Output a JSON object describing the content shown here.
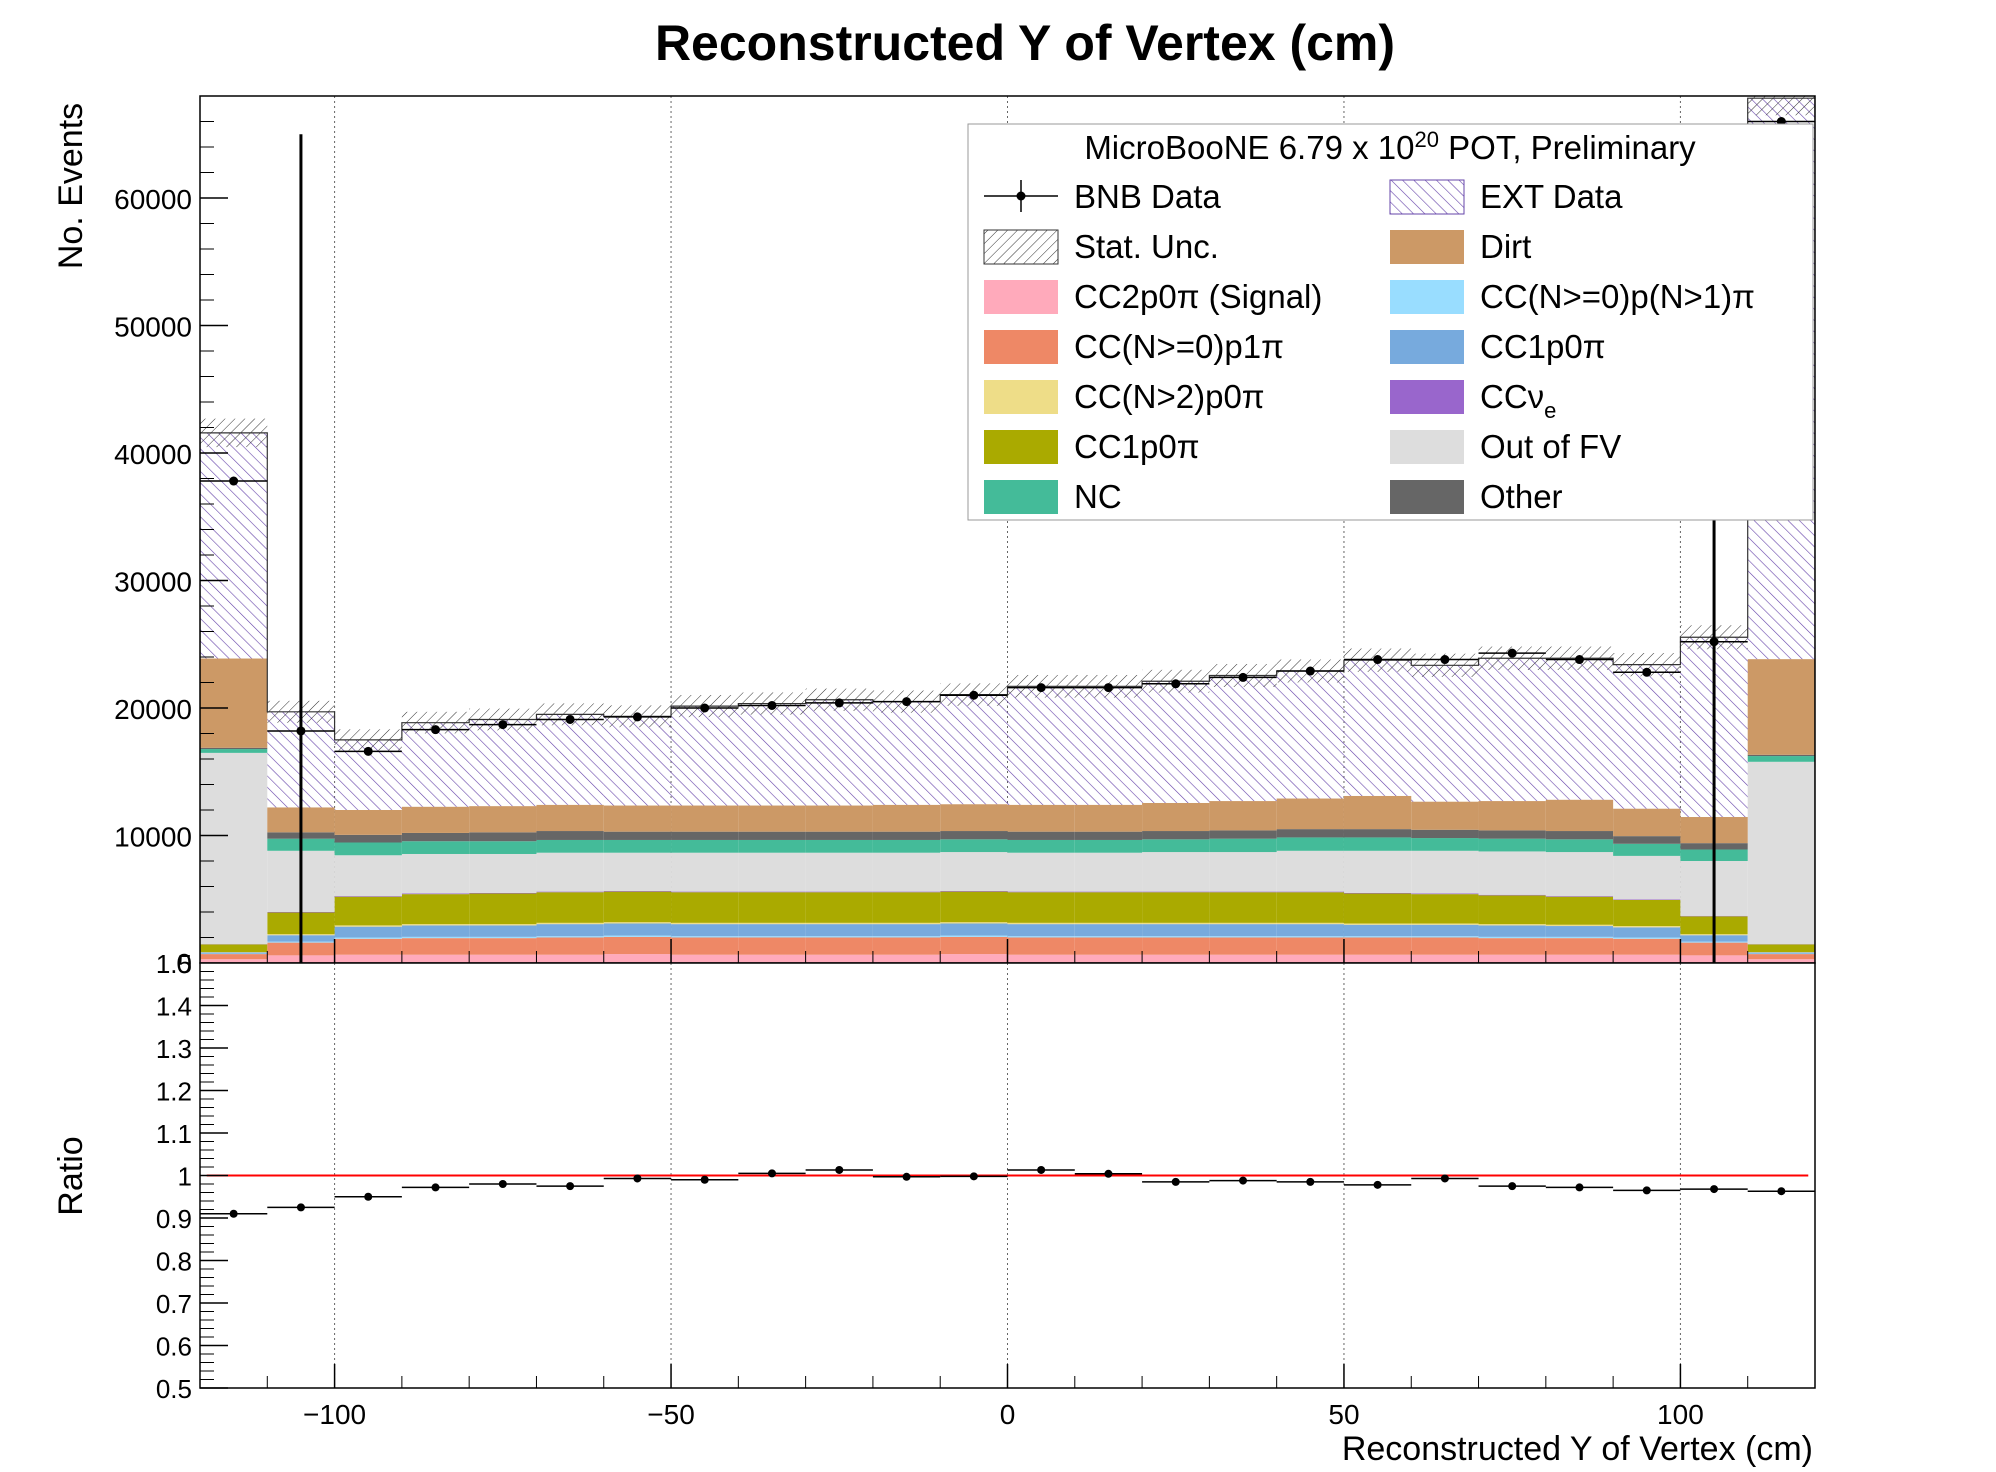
{
  "chart_data": {
    "type": "bar",
    "title": "Reconstructed Y of Vertex (cm)",
    "xlabel": "Reconstructed Y of Vertex (cm)",
    "ylabel": "No. Events",
    "ratio_ylabel": "Ratio",
    "xlim": [
      -120,
      120
    ],
    "ylim": [
      0,
      68000
    ],
    "ratio_ylim": [
      0.5,
      1.5
    ],
    "grid": "vertical",
    "legend_position": "top-right",
    "x_ticks": [
      -100,
      -50,
      0,
      50,
      100
    ],
    "x_tick_labels": [
      "−100",
      "−50",
      "0",
      "50",
      "100"
    ],
    "y_ticks": [
      10000,
      20000,
      30000,
      40000,
      50000,
      60000
    ],
    "y_tick_labels": [
      "10000",
      "20000",
      "30000",
      "40000",
      "50000",
      "60000"
    ],
    "y_cut_label": "0",
    "ratio_ticks": [
      0.5,
      0.6,
      0.7,
      0.8,
      0.9,
      1.0,
      1.1,
      1.2,
      1.3,
      1.4
    ],
    "ratio_tick_labels": [
      "0.5",
      "0.6",
      "0.7",
      "0.8",
      "0.9",
      "1",
      "1.1",
      "1.2",
      "1.3",
      "1.4"
    ],
    "ratio_cut_label": "1.5",
    "legend_header": {
      "main": "MicroBooNE 6.79 x 10",
      "sup": "20",
      "tail": " POT, Preliminary"
    },
    "bin_edges": [
      -120,
      -110,
      -100,
      -90,
      -80,
      -70,
      -60,
      -50,
      -40,
      -30,
      -20,
      -10,
      0,
      10,
      20,
      30,
      40,
      50,
      60,
      70,
      80,
      90,
      100,
      110,
      120
    ],
    "series": [
      {
        "name": "CC2p0π (Signal)",
        "color": "#ffaabb",
        "values": [
          300,
          600,
          650,
          650,
          650,
          650,
          700,
          650,
          650,
          650,
          650,
          700,
          650,
          650,
          650,
          650,
          650,
          650,
          650,
          650,
          650,
          650,
          600,
          300
        ]
      },
      {
        "name": "CC(N>=0)p1π",
        "color": "#ee8866",
        "values": [
          400,
          1000,
          1250,
          1300,
          1300,
          1350,
          1350,
          1350,
          1350,
          1350,
          1350,
          1350,
          1350,
          1350,
          1350,
          1350,
          1350,
          1350,
          1350,
          1300,
          1300,
          1250,
          1000,
          400
        ]
      },
      {
        "name": "CC(N>=0)p(N>1)π",
        "color": "#99ddff",
        "values": [
          30,
          80,
          100,
          100,
          100,
          100,
          100,
          100,
          100,
          100,
          100,
          100,
          100,
          100,
          100,
          100,
          100,
          100,
          100,
          100,
          100,
          100,
          80,
          30
        ]
      },
      {
        "name": "CC1p0π",
        "color": "#77aadd",
        "values": [
          100,
          500,
          850,
          900,
          900,
          950,
          950,
          950,
          950,
          950,
          950,
          950,
          950,
          950,
          950,
          950,
          950,
          900,
          900,
          900,
          850,
          800,
          500,
          100
        ]
      },
      {
        "name": "CC(N>2)p0π",
        "color": "#eedd88",
        "values": [
          30,
          80,
          100,
          100,
          100,
          100,
          100,
          100,
          100,
          100,
          100,
          100,
          100,
          100,
          100,
          100,
          100,
          100,
          100,
          100,
          100,
          100,
          80,
          30
        ]
      },
      {
        "name": "CC1p0π",
        "color": "#aaaa00",
        "values": [
          600,
          1700,
          2250,
          2350,
          2400,
          2400,
          2400,
          2400,
          2400,
          2400,
          2400,
          2400,
          2400,
          2400,
          2400,
          2400,
          2400,
          2350,
          2300,
          2250,
          2200,
          2050,
          1400,
          600
        ]
      },
      {
        "name": "CCν",
        "color": "#9966cc",
        "values": [
          20,
          40,
          50,
          50,
          50,
          50,
          50,
          50,
          50,
          50,
          50,
          50,
          50,
          50,
          50,
          50,
          50,
          50,
          50,
          50,
          50,
          50,
          40,
          20
        ]
      },
      {
        "name": "Out of FV",
        "color": "#dddddd",
        "values": [
          15000,
          4800,
          3200,
          3100,
          3050,
          3050,
          3000,
          3050,
          3050,
          3050,
          3050,
          3050,
          3050,
          3050,
          3100,
          3100,
          3200,
          3300,
          3350,
          3400,
          3450,
          3400,
          4300,
          14300
        ]
      },
      {
        "name": "NC",
        "color": "#44bb99",
        "values": [
          300,
          950,
          1000,
          1000,
          1000,
          1000,
          1000,
          1000,
          1000,
          1000,
          1000,
          1000,
          1000,
          1000,
          1000,
          1050,
          1050,
          1050,
          1000,
          1000,
          1000,
          950,
          900,
          450
        ]
      },
      {
        "name": "Other",
        "color": "#666666",
        "values": [
          100,
          500,
          600,
          650,
          700,
          700,
          650,
          650,
          650,
          650,
          650,
          650,
          650,
          650,
          650,
          650,
          650,
          650,
          650,
          650,
          650,
          600,
          500,
          100
        ]
      },
      {
        "name": "Dirt",
        "color": "#cc9966",
        "values": [
          7000,
          1950,
          1950,
          2050,
          2050,
          2050,
          2050,
          2050,
          2050,
          2050,
          2100,
          2100,
          2100,
          2100,
          2200,
          2300,
          2400,
          2600,
          2200,
          2300,
          2450,
          2150,
          2050,
          7500
        ]
      },
      {
        "name": "EXT Data",
        "color": "#7755bb",
        "values": [
          17700,
          7500,
          5500,
          6600,
          6800,
          7100,
          7000,
          7800,
          8000,
          8300,
          8100,
          8600,
          9300,
          9300,
          9550,
          9850,
          10000,
          10650,
          10700,
          11200,
          11100,
          11300,
          14100,
          44000
        ]
      }
    ],
    "legend_entries": [
      {
        "label": "BNB Data",
        "style": "data"
      },
      {
        "label": "EXT Data",
        "style": "ext"
      },
      {
        "label": "Stat. Unc.",
        "style": "stat"
      },
      {
        "label": "Dirt",
        "style": "fill",
        "color": "#cc9966"
      },
      {
        "label": "CC2p0π (Signal)",
        "style": "fill",
        "color": "#ffaabb"
      },
      {
        "label": "CC(N>=0)p(N>1)π",
        "style": "fill",
        "color": "#99ddff"
      },
      {
        "label": "CC(N>=0)p1π",
        "style": "fill",
        "color": "#ee8866"
      },
      {
        "label": "CC1p0π",
        "style": "fill",
        "color": "#77aadd"
      },
      {
        "label": "CC(N>2)p0π",
        "style": "fill",
        "color": "#eedd88"
      },
      {
        "label": "CCν",
        "sub": "e",
        "style": "fill",
        "color": "#9966cc"
      },
      {
        "label": "CC1p0π",
        "style": "fill",
        "color": "#aaaa00"
      },
      {
        "label": "Out of FV",
        "style": "fill",
        "color": "#dddddd"
      },
      {
        "label": "NC",
        "style": "fill",
        "color": "#44bb99"
      },
      {
        "label": "Other",
        "style": "fill",
        "color": "#666666"
      }
    ],
    "bnb_data": {
      "name": "BNB Data",
      "x": [
        -115,
        -105,
        -95,
        -85,
        -75,
        -65,
        -55,
        -45,
        -35,
        -25,
        -15,
        -5,
        5,
        15,
        25,
        35,
        45,
        55,
        65,
        75,
        85,
        95,
        105,
        115
      ],
      "y": [
        37800,
        18200,
        16600,
        18300,
        18700,
        19100,
        19300,
        20000,
        20200,
        20400,
        20500,
        21000,
        21600,
        21600,
        21900,
        22400,
        22900,
        23800,
        23800,
        24300,
        23800,
        22800,
        25200,
        66000
      ]
    },
    "highlighted_bins": [
      -105,
      105
    ],
    "ratio": {
      "name": "Ratio",
      "reference_line": 1.0,
      "reference_color": "#ff0000",
      "x": [
        -115,
        -105,
        -95,
        -85,
        -75,
        -65,
        -55,
        -45,
        -35,
        -25,
        -15,
        -5,
        5,
        15,
        25,
        35,
        45,
        55,
        65,
        75,
        85,
        95,
        105,
        115
      ],
      "y": [
        0.91,
        0.925,
        0.95,
        0.972,
        0.98,
        0.975,
        0.993,
        0.99,
        1.005,
        1.013,
        0.997,
        0.998,
        1.013,
        1.004,
        0.985,
        0.988,
        0.985,
        0.978,
        0.993,
        0.975,
        0.972,
        0.965,
        0.968,
        0.963
      ]
    }
  }
}
